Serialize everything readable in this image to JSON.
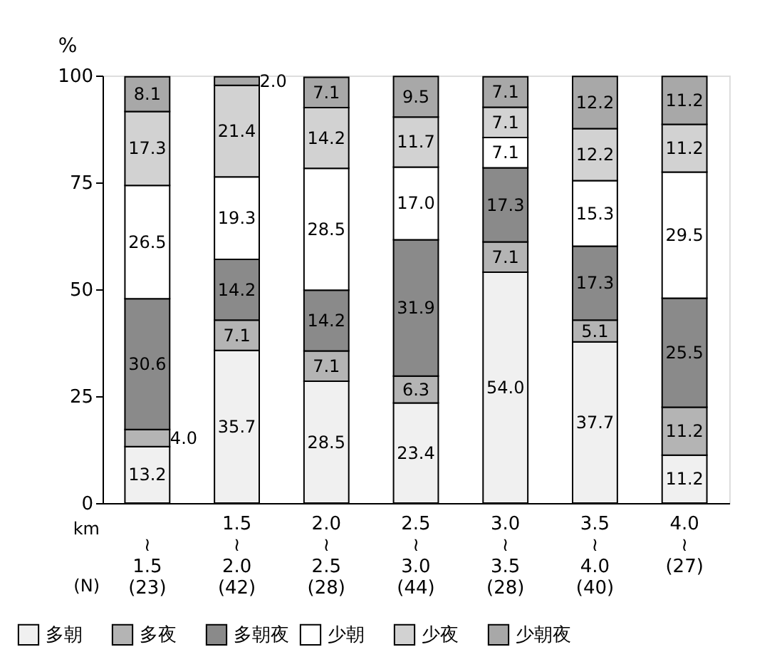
{
  "chart_data": {
    "type": "bar",
    "stacked": true,
    "ylabel": "%",
    "categories": [
      "\n≀\n1.5\n(23)",
      "1.5\n≀\n2.0\n(42)",
      "2.0\n≀\n2.5\n(28)",
      "2.5\n≀\n3.0\n(44)",
      "3.0\n≀\n3.5\n(28)",
      "3.5\n≀\n4.0\n(40)",
      "4.0\n≀\n\n(27)"
    ],
    "series": [
      {
        "name": "多朝",
        "color": "#f0f0f0",
        "values": [
          13.2,
          35.7,
          28.5,
          23.4,
          54.0,
          37.7,
          11.2
        ],
        "value_labels": [
          "13.2",
          "35.7",
          "28.5",
          "23.4",
          "54.0",
          "37.7",
          "11.2"
        ]
      },
      {
        "name": "多夜",
        "color": "#b4b4b4",
        "values": [
          4.0,
          7.1,
          7.1,
          6.3,
          7.1,
          5.1,
          11.2
        ],
        "value_labels": [
          "4.0",
          "7.1",
          "7.1",
          "6.3",
          "7.1",
          "5.1",
          "11.2"
        ]
      },
      {
        "name": "多朝夜",
        "color": "#8a8a8a",
        "values": [
          30.6,
          14.2,
          14.2,
          31.9,
          17.3,
          17.3,
          25.5
        ],
        "value_labels": [
          "30.6",
          "14.2",
          "14.2",
          "31.9",
          "17.3",
          "17.3",
          "25.5"
        ]
      },
      {
        "name": "少朝",
        "color": "#ffffff",
        "values": [
          26.5,
          19.3,
          28.5,
          17.0,
          7.1,
          15.3,
          29.5
        ],
        "value_labels": [
          "26.5",
          "19.3",
          "28.5",
          "17.0",
          "7.1",
          "15.3",
          "29.5"
        ]
      },
      {
        "name": "少夜",
        "color": "#d2d2d2",
        "values": [
          17.3,
          21.4,
          14.2,
          11.7,
          7.1,
          12.2,
          11.2
        ],
        "value_labels": [
          "17.3",
          "21.4",
          "14.2",
          "11.7",
          "7.1",
          "12.2",
          "11.2"
        ]
      },
      {
        "name": "少朝夜",
        "color": "#a8a8a8",
        "values": [
          8.1,
          2.0,
          7.1,
          9.5,
          7.1,
          12.2,
          11.2
        ],
        "value_labels": [
          "8.1",
          "2.0",
          "7.1",
          "9.5",
          "7.1",
          "12.2",
          "11.2"
        ]
      }
    ],
    "ylim": [
      0,
      100
    ],
    "yticks": [
      0,
      25,
      50,
      75,
      100
    ],
    "grid": false,
    "legend": "bottom",
    "annotations": [
      "km",
      "(N)"
    ]
  }
}
